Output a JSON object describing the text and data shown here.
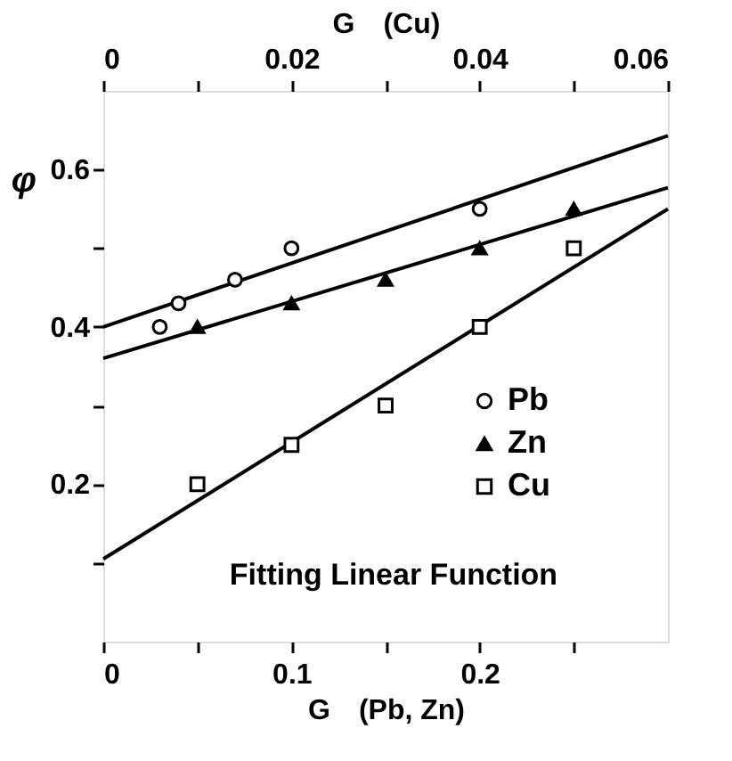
{
  "chart_data": {
    "type": "scatter",
    "xlabel": "G　(Pb, Zn)",
    "x2label": "G　(Cu)",
    "ylabel": "φ",
    "xlim": [
      0,
      0.3
    ],
    "xticks": [
      0,
      {
        "value": 0.05,
        "label": null
      },
      0.1,
      {
        "value": 0.15,
        "label": null
      },
      0.2,
      {
        "value": 0.25,
        "label": null
      }
    ],
    "x2lim": [
      0,
      0.06
    ],
    "x2ticks": [
      0,
      {
        "value": 0.01,
        "label": null
      },
      0.02,
      {
        "value": 0.03,
        "label": null
      },
      0.04,
      {
        "value": 0.05,
        "label": null
      },
      0.06
    ],
    "ylim": [
      0,
      0.7
    ],
    "yticks": [
      {
        "value": 0.1,
        "label": null
      },
      0.2,
      {
        "value": 0.3,
        "label": null
      },
      0.4,
      {
        "value": 0.5,
        "label": null
      },
      0.6
    ],
    "grid": false,
    "legend": "right",
    "annotations": [
      "Fitting Linear Function"
    ],
    "series": [
      {
        "name": "Pb",
        "marker": "circle",
        "color": "#000000",
        "x": [
          0.03,
          0.04,
          0.07,
          0.1,
          0.2
        ],
        "values": [
          0.4,
          0.43,
          0.46,
          0.5,
          0.55
        ]
      },
      {
        "name": "Zn",
        "marker": "triangle",
        "color": "#000000",
        "x": [
          0.05,
          0.1,
          0.15,
          0.2,
          0.25
        ],
        "values": [
          0.4,
          0.43,
          0.46,
          0.5,
          0.55
        ]
      },
      {
        "name": "Cu",
        "marker": "square",
        "axis": "x2",
        "color": "#000000",
        "x": [
          0.01,
          0.02,
          0.03,
          0.04,
          0.05
        ],
        "values": [
          0.2,
          0.25,
          0.3,
          0.4,
          0.5
        ]
      },
      {
        "type": "line",
        "marker": "none",
        "color": "#000000",
        "x": [
          0,
          0.3
        ],
        "values": [
          0.4,
          0.643
        ]
      },
      {
        "type": "line",
        "marker": "none",
        "color": "#000000",
        "x": [
          0,
          0.3
        ],
        "values": [
          0.36,
          0.577
        ]
      },
      {
        "type": "line",
        "marker": "none",
        "axis": "x2",
        "color": "#000000",
        "x": [
          0,
          0.06
        ],
        "values": [
          0.105,
          0.55
        ]
      }
    ]
  }
}
